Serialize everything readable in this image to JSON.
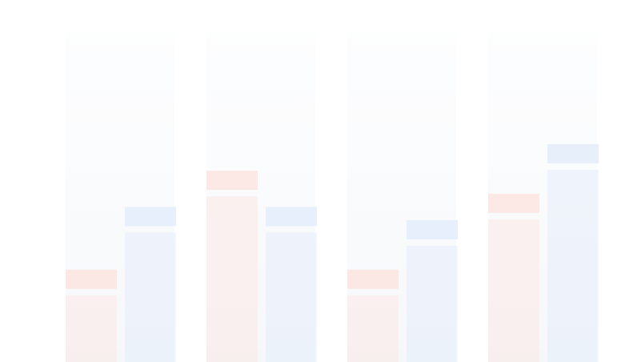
{
  "chart_data": {
    "type": "bar",
    "categories": [
      null,
      null,
      null,
      null
    ],
    "series": [
      {
        "color": "#fbe5e1",
        "values": [
          28,
          58,
          28,
          51
        ]
      },
      {
        "color": "#e3ecfa",
        "values": [
          47,
          47,
          43,
          66
        ]
      }
    ],
    "ylim": [
      0,
      100
    ]
  }
}
